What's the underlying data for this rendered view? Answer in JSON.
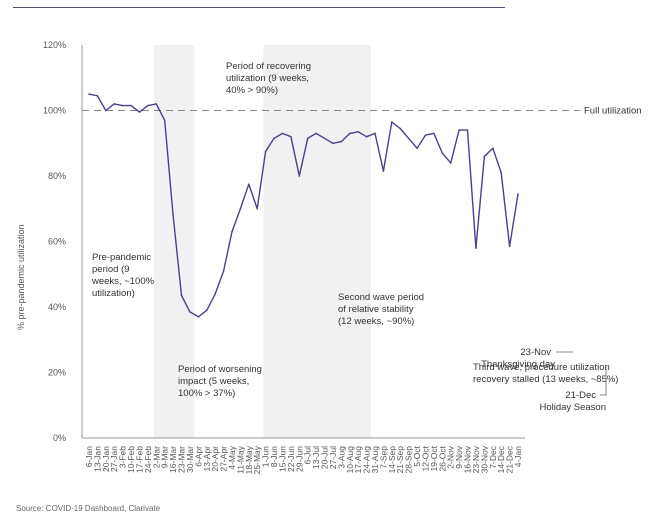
{
  "chart_data": {
    "type": "line",
    "title": "",
    "xlabel": "",
    "ylabel": "% pre-pandemic utilization",
    "ylim": [
      0,
      120
    ],
    "yticks": [
      0,
      20,
      40,
      60,
      80,
      100,
      120
    ],
    "ytick_labels": [
      "0%",
      "20%",
      "40%",
      "60%",
      "80%",
      "100%",
      "120%"
    ],
    "grid": false,
    "line_color": "#4b3f8f",
    "band_color": "#f1f1f1",
    "categories": [
      "6-Jan",
      "13-Jan",
      "20-Jan",
      "27-Jan",
      "3-Feb",
      "10-Feb",
      "17-Feb",
      "24-Feb",
      "2-Mar",
      "9-Mar",
      "16-Mar",
      "23-Mar",
      "30-Mar",
      "6-Apr",
      "13-Apr",
      "20-Apr",
      "27-Apr",
      "4-May",
      "11-May",
      "18-May",
      "25-May",
      "1-Jun",
      "8-Jun",
      "15-Jun",
      "22-Jun",
      "29-Jun",
      "6-Jul",
      "13-Jul",
      "20-Jul",
      "27-Jul",
      "3-Aug",
      "10-Aug",
      "17-Aug",
      "24-Aug",
      "31-Aug",
      "7-Sep",
      "14-Sep",
      "21-Sep",
      "28-Sep",
      "5-Oct",
      "12-Oct",
      "19-Oct",
      "26-Oct",
      "2-Nov",
      "9-Nov",
      "16-Nov",
      "23-Nov",
      "30-Nov",
      "7-Dec",
      "14-Dec",
      "21-Dec",
      "4-Jan"
    ],
    "series": [
      {
        "name": "% pre-pandemic utilization",
        "values": [
          105,
          104.5,
          100,
          102,
          101.5,
          101.5,
          99.5,
          101.5,
          102,
          97,
          68,
          43.5,
          38.5,
          37,
          39,
          44,
          51,
          63,
          70,
          77.5,
          70,
          87.5,
          91.5,
          93,
          92,
          80,
          91.5,
          93,
          91.5,
          90,
          90.5,
          93,
          93.5,
          92,
          93,
          81.5,
          96.5,
          94.5,
          91.5,
          88.5,
          92.5,
          93,
          87,
          84,
          94,
          94,
          58,
          86,
          88.5,
          81,
          58.5,
          74.5
        ]
      }
    ],
    "reference_line": {
      "value": 100,
      "label": "Full utilization",
      "style": "dashed"
    },
    "shaded_bands": [
      {
        "from": "2-Mar",
        "to": "30-Mar"
      },
      {
        "from": "1-Jun",
        "to": "24-Aug"
      }
    ],
    "annotations": [
      {
        "id": "pre-pandemic",
        "lines": [
          "Pre-pandemic",
          "period (9",
          "weeks, ~100%",
          "utilization)"
        ]
      },
      {
        "id": "worsening",
        "lines": [
          "Period of worsening",
          "impact (5 weeks,",
          "100% > 37%)"
        ]
      },
      {
        "id": "recovering",
        "lines": [
          "Period of recovering",
          "utilization (9 weeks,",
          "40% > 90%)"
        ]
      },
      {
        "id": "second-wave",
        "lines": [
          "Second wave period",
          "of relative stability",
          "(12 weeks, ~90%)"
        ]
      },
      {
        "id": "third-wave",
        "lines": [
          "Third wave; procedure utilization",
          "recovery stalled (13 weeks, ~85%)"
        ]
      },
      {
        "id": "thanksgiving",
        "lines": [
          "23-Nov",
          "Thanksgiving day"
        ]
      },
      {
        "id": "holiday",
        "lines": [
          "21-Dec",
          "Holiday Season"
        ]
      }
    ],
    "source": "Source: COVID-19 Dashboard, Clarivate"
  }
}
